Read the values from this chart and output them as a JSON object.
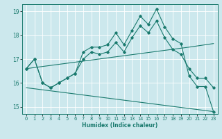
{
  "xlabel": "Humidex (Indice chaleur)",
  "bg_color": "#cce8ed",
  "grid_color": "#ffffff",
  "line_color": "#1a7a6e",
  "xlim": [
    -0.5,
    23.5
  ],
  "ylim": [
    14.7,
    19.3
  ],
  "xticks": [
    0,
    1,
    2,
    3,
    4,
    5,
    6,
    7,
    8,
    9,
    10,
    11,
    12,
    13,
    14,
    15,
    16,
    17,
    18,
    19,
    20,
    21,
    22,
    23
  ],
  "yticks": [
    15,
    16,
    17,
    18,
    19
  ],
  "line1_x": [
    0,
    1,
    2,
    3,
    4,
    5,
    6,
    7,
    8,
    9,
    10,
    11,
    12,
    13,
    14,
    15,
    16,
    17,
    18,
    19,
    20,
    21,
    22,
    23
  ],
  "line1_y": [
    16.6,
    17.0,
    16.0,
    15.8,
    16.0,
    16.2,
    16.4,
    17.3,
    17.5,
    17.5,
    17.6,
    18.1,
    17.6,
    18.2,
    18.8,
    18.45,
    19.1,
    18.35,
    17.85,
    17.65,
    16.3,
    15.85,
    15.85,
    14.8
  ],
  "line2_x": [
    0,
    1,
    2,
    3,
    4,
    5,
    6,
    7,
    8,
    9,
    10,
    11,
    12,
    13,
    14,
    15,
    16,
    17,
    18,
    19,
    20,
    21,
    22,
    23
  ],
  "line2_y": [
    16.6,
    17.0,
    16.0,
    15.8,
    16.0,
    16.2,
    16.4,
    17.0,
    17.3,
    17.2,
    17.3,
    17.7,
    17.3,
    17.9,
    18.4,
    18.1,
    18.6,
    17.9,
    17.4,
    17.2,
    16.6,
    16.2,
    16.2,
    15.8
  ],
  "line3_x": [
    0,
    20,
    23
  ],
  "line3_y": [
    16.6,
    17.5,
    17.65
  ],
  "line4_x": [
    0,
    23
  ],
  "line4_y": [
    15.8,
    14.8
  ]
}
